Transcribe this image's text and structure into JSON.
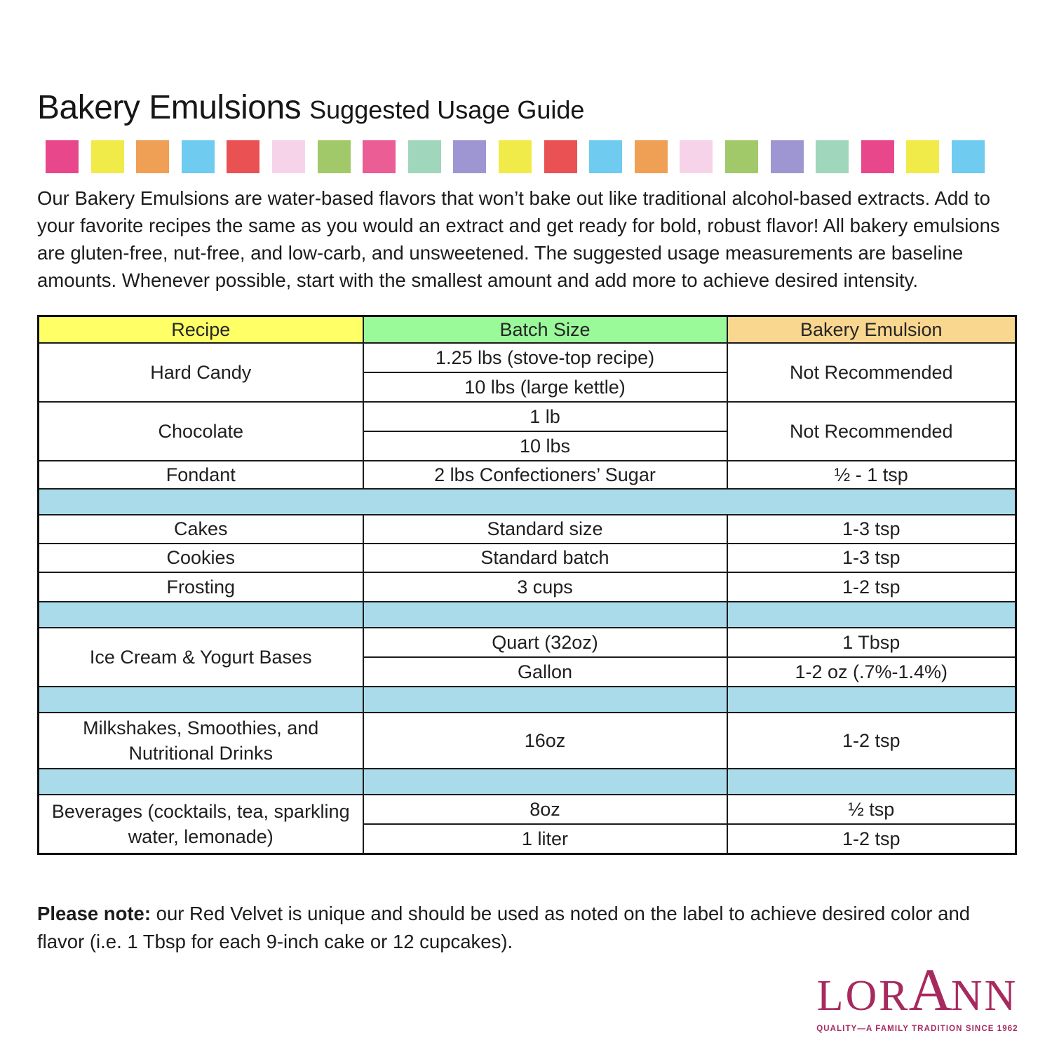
{
  "title": {
    "main": "Bakery Emulsions",
    "sub": "Suggested Usage Guide"
  },
  "palette_strip": {
    "colors": [
      "#E8478B",
      "#F1EB49",
      "#F0A055",
      "#6FCBF0",
      "#EA5153",
      "#F6D3E8",
      "#A2C969",
      "#EA5D95",
      "#9FD6BC",
      "#9E96D2",
      "#F1EB49",
      "#EA5153",
      "#6FCBF0",
      "#F0A055",
      "#F6D3E8",
      "#A2C969",
      "#9E96D2",
      "#9FD6BC",
      "#E8478B",
      "#F1EB49",
      "#6FCBF0"
    ]
  },
  "intro": "Our Bakery Emulsions are water-based flavors that won’t bake out like traditional alcohol-based extracts. Add to your favorite recipes the same as you would an extract and get ready for bold, robust flavor! All bakery emulsions are gluten-free, nut-free, and low-carb, and unsweetened. The suggested usage measurements are baseline amounts. Whenever possible, start with the smallest amount and add more to achieve desired intensity.",
  "table": {
    "headers": {
      "recipe": "Recipe",
      "batch": "Batch Size",
      "emulsion": "Bakery Emulsion"
    },
    "header_colors": {
      "recipe": "#FFFF66",
      "batch": "#9AFA9A",
      "emulsion": "#FAD78E"
    },
    "spacer_color": "#AADBEB",
    "rows": {
      "hard_candy": {
        "recipe": "Hard Candy",
        "batch1": "1.25 lbs (stove-top recipe)",
        "batch2": "10 lbs (large kettle)",
        "emulsion": "Not Recommended"
      },
      "chocolate": {
        "recipe": "Chocolate",
        "batch1": "1 lb",
        "batch2": "10 lbs",
        "emulsion": "Not Recommended"
      },
      "fondant": {
        "recipe": "Fondant",
        "batch": "2 lbs Confectioners’ Sugar",
        "emulsion": "½ - 1 tsp"
      },
      "cakes": {
        "recipe": "Cakes",
        "batch": "Standard size",
        "emulsion": "1-3 tsp"
      },
      "cookies": {
        "recipe": "Cookies",
        "batch": "Standard batch",
        "emulsion": "1-3 tsp"
      },
      "frosting": {
        "recipe": "Frosting",
        "batch": "3 cups",
        "emulsion": "1-2 tsp"
      },
      "ice_cream": {
        "recipe": "Ice Cream & Yogurt Bases",
        "batch1": "Quart (32oz)",
        "emulsion1": "1 Tbsp",
        "batch2": "Gallon",
        "emulsion2": "1-2 oz (.7%-1.4%)"
      },
      "milkshakes": {
        "recipe": "Milkshakes, Smoothies, and Nutritional Drinks",
        "batch": "16oz",
        "emulsion": "1-2 tsp"
      },
      "beverages": {
        "recipe": "Beverages (cocktails, tea, sparkling water, lemonade)",
        "batch1": "8oz",
        "emulsion1": "½ tsp",
        "batch2": "1 liter",
        "emulsion2": "1-2 tsp"
      }
    }
  },
  "note": {
    "bold": "Please note:",
    "text": " our Red Velvet is unique and should be used as noted on the label to achieve desired color and flavor (i.e. 1 Tbsp for each 9-inch cake or 12 cupcakes)."
  },
  "logo": {
    "wordmark_parts": [
      "LOR",
      "A",
      "NN"
    ],
    "tagline": "QUALITY—A FAMILY TRADITION SINCE 1962",
    "color": "#A72A5E"
  }
}
